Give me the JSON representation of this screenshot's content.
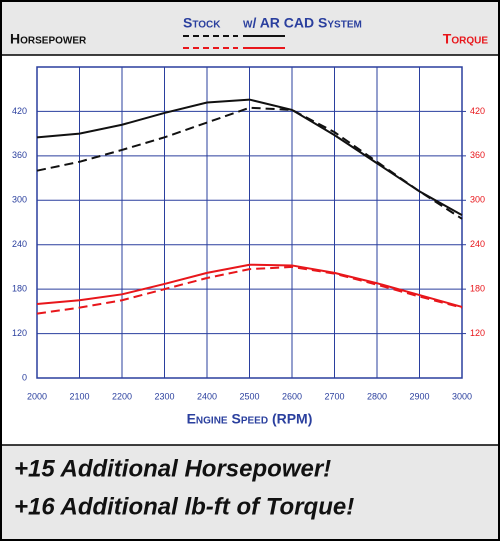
{
  "chart_data": {
    "type": "line",
    "left_label": "Horsepower",
    "right_label": "Torque",
    "xlabel": "Engine Speed (RPM)",
    "x": [
      2000,
      2100,
      2200,
      2300,
      2400,
      2500,
      2600,
      2700,
      2800,
      2900,
      3000
    ],
    "series": [
      {
        "name": "Stock",
        "color": "#111111",
        "dashed": true,
        "values": [
          340,
          352,
          368,
          385,
          405,
          425,
          422,
          392,
          352,
          312,
          275
        ]
      },
      {
        "name": "w/ AR CAD System",
        "color": "#111111",
        "dashed": false,
        "values": [
          385,
          390,
          402,
          418,
          432,
          436,
          422,
          388,
          350,
          312,
          280
        ]
      },
      {
        "color": "#e8161b",
        "dashed": true,
        "axis": "y2",
        "values": [
          147,
          155,
          165,
          180,
          195,
          207,
          210,
          201,
          186,
          170,
          155
        ]
      },
      {
        "color": "#e8161b",
        "dashed": false,
        "axis": "y2",
        "values": [
          160,
          165,
          173,
          187,
          202,
          213,
          212,
          202,
          188,
          172,
          156
        ]
      }
    ],
    "xlim": [
      2000,
      3000
    ],
    "xticks": [
      2000,
      2100,
      2200,
      2300,
      2400,
      2500,
      2600,
      2700,
      2800,
      2900,
      3000
    ],
    "ylim": [
      60,
      480
    ],
    "yticks": [
      {
        "value": 60,
        "label": "0"
      },
      120,
      180,
      240,
      300,
      360,
      420
    ],
    "y2lim": [
      60,
      480
    ],
    "y2ticks": [
      120,
      180,
      240,
      300,
      360,
      420
    ],
    "grid": true,
    "grid_color": "#2a3f9e",
    "banner": [
      "+15 Additional Horsepower!",
      "+16 Additional lb-ft of Torque!"
    ]
  }
}
